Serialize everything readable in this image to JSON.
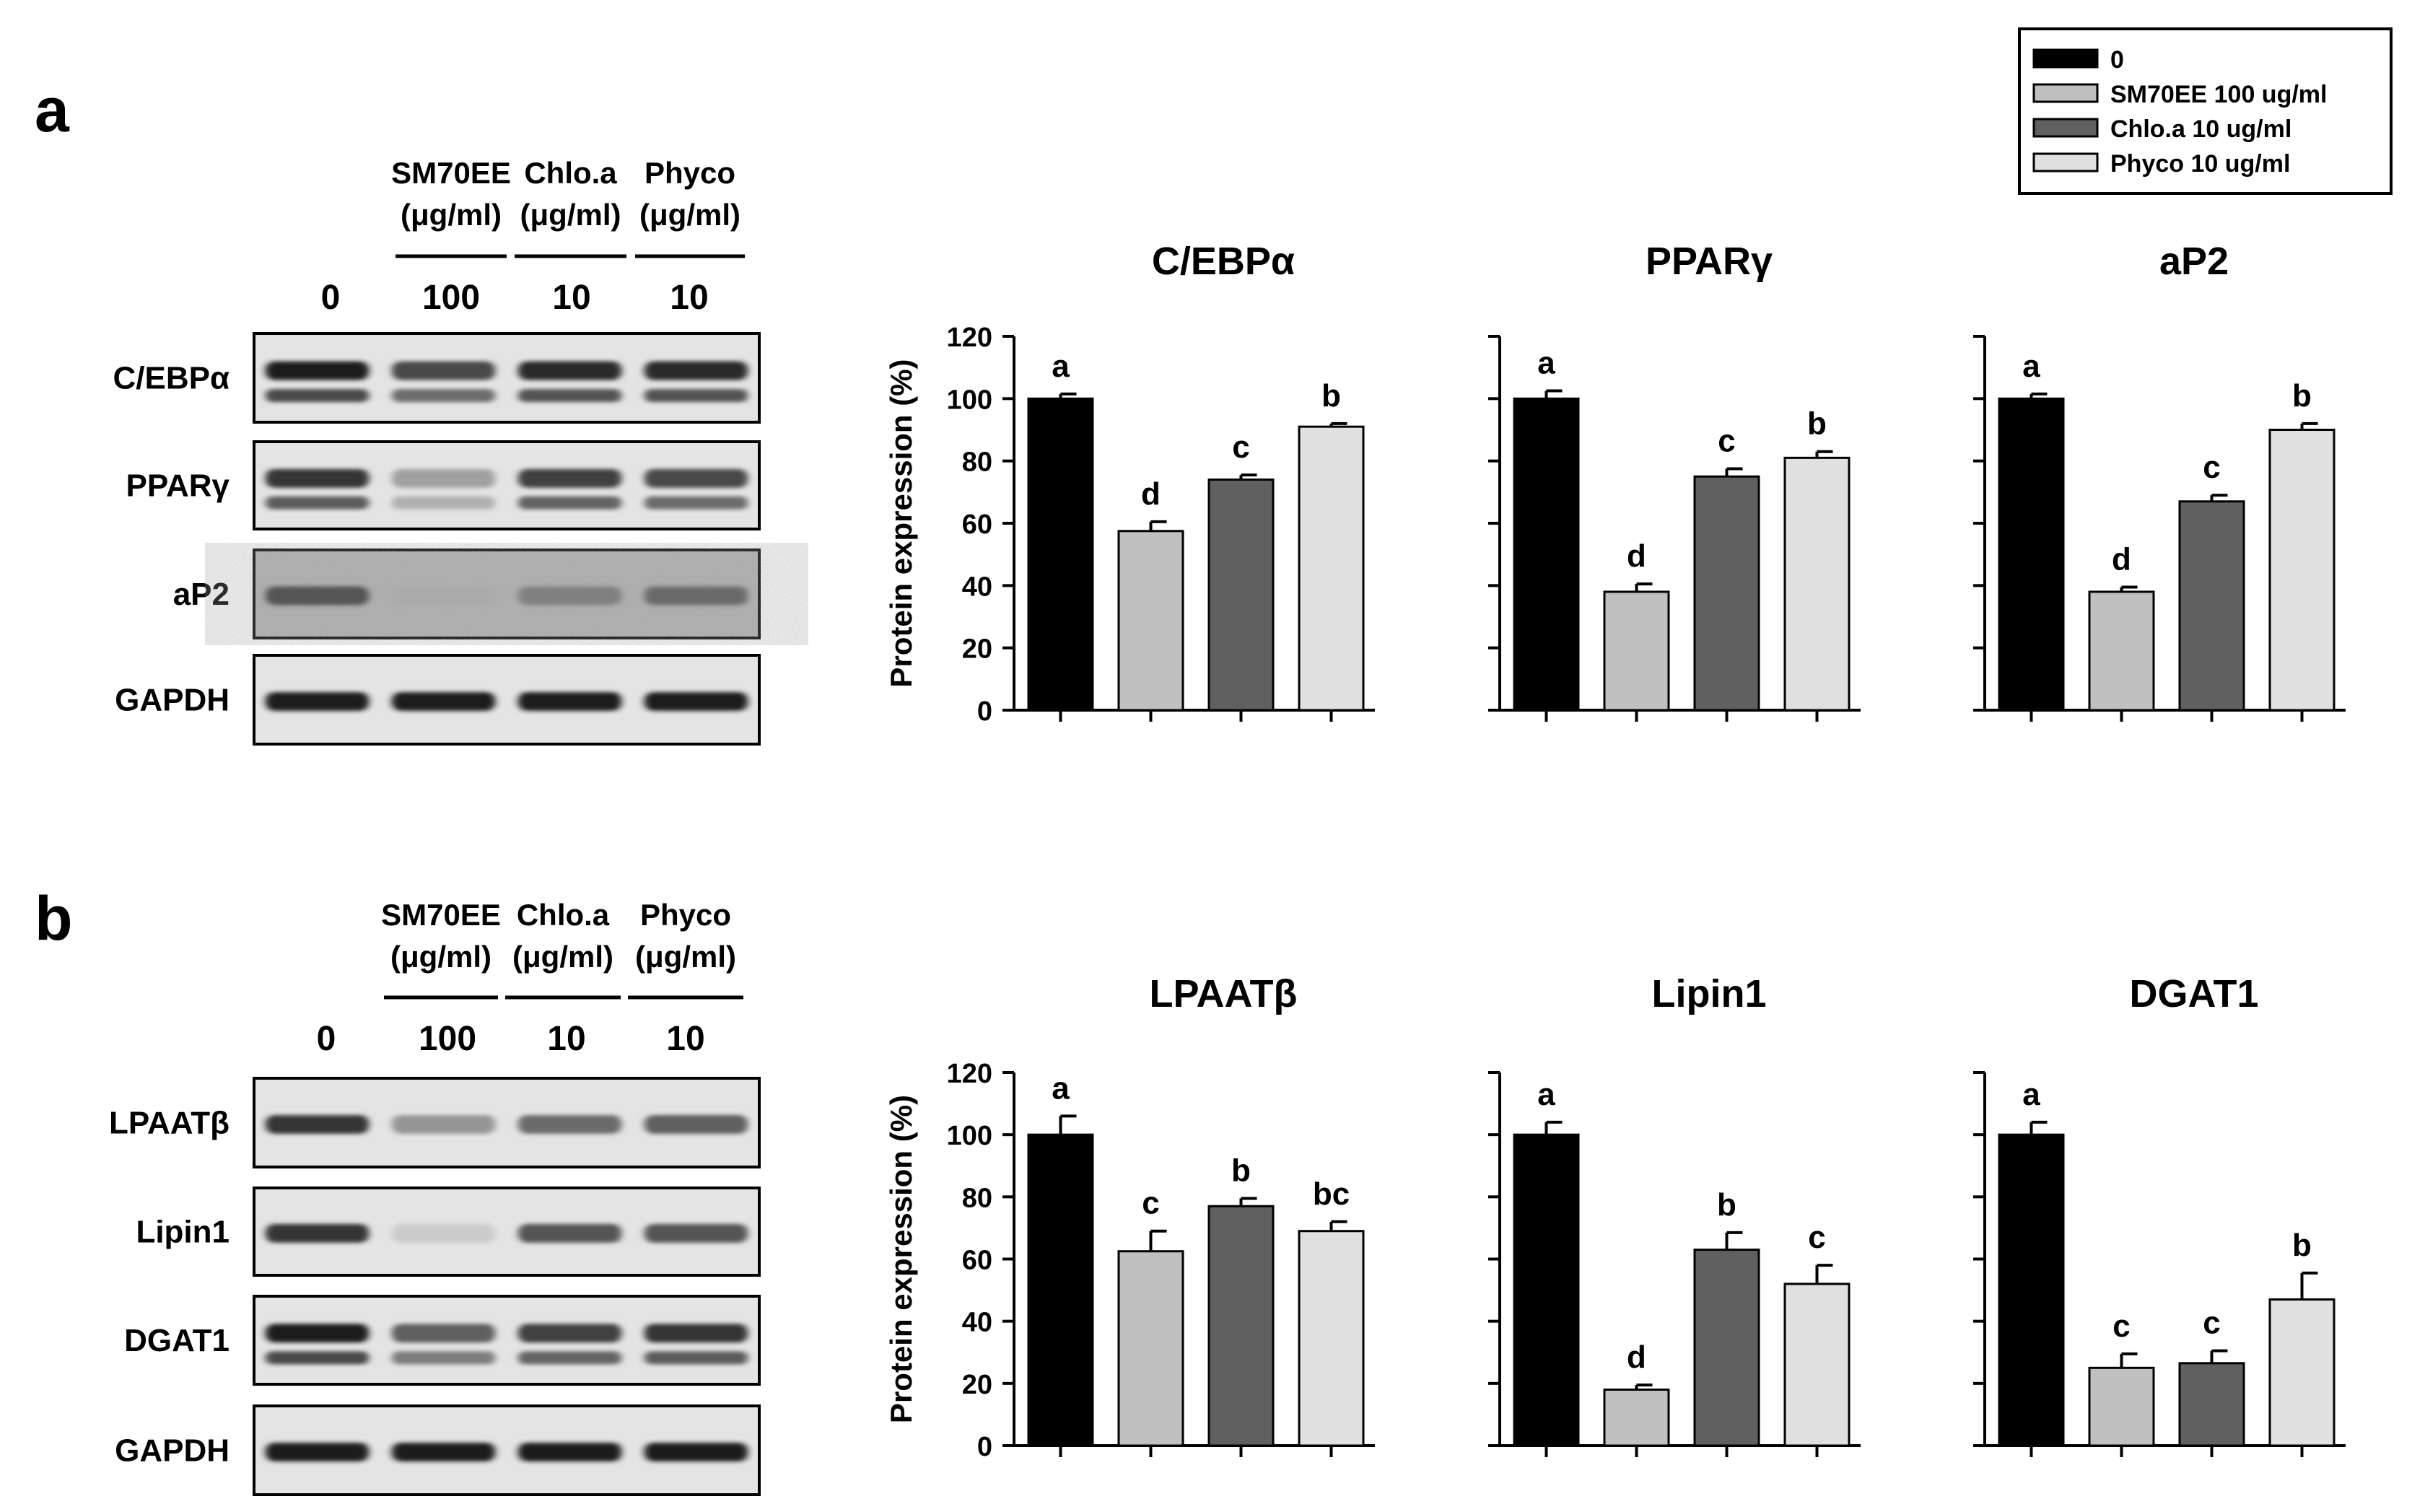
{
  "panels": [
    {
      "letter": "a",
      "blot": {
        "headers": [
          {
            "line1": "SM70EE",
            "line2": "(μg/ml)"
          },
          {
            "line1": "Chlo.a",
            "line2": "(μg/ml)"
          },
          {
            "line1": "Phyco",
            "line2": "(μg/ml)"
          }
        ],
        "lanes": [
          "0",
          "100",
          "10",
          "10"
        ],
        "rows": [
          {
            "label": "C/EBPα",
            "bands": [
              0.95,
              0.75,
              0.9,
              0.9
            ],
            "doublet": true
          },
          {
            "label": "PPARγ",
            "bands": [
              0.85,
              0.35,
              0.8,
              0.75
            ],
            "doublet": true
          },
          {
            "label": "aP2",
            "bands": [
              0.7,
              0.3,
              0.5,
              0.6
            ],
            "doublet": false,
            "noisy": true
          },
          {
            "label": "GAPDH",
            "bands": [
              0.95,
              0.95,
              0.95,
              0.95
            ],
            "doublet": false
          }
        ]
      }
    },
    {
      "letter": "b",
      "blot": {
        "headers": [
          {
            "line1": "SM70EE",
            "line2": "(μg/ml)"
          },
          {
            "line1": "Chlo.a",
            "line2": "(μg/ml)"
          },
          {
            "line1": "Phyco",
            "line2": "(μg/ml)"
          }
        ],
        "lanes": [
          "0",
          "100",
          "10",
          "10"
        ],
        "rows": [
          {
            "label": "LPAATβ",
            "bands": [
              0.85,
              0.4,
              0.6,
              0.65
            ],
            "doublet": false
          },
          {
            "label": "Lipin1",
            "bands": [
              0.85,
              0.15,
              0.7,
              0.7
            ],
            "doublet": false
          },
          {
            "label": "DGAT1",
            "bands": [
              0.95,
              0.65,
              0.8,
              0.85
            ],
            "doublet": true
          },
          {
            "label": "GAPDH",
            "bands": [
              0.95,
              0.95,
              0.95,
              0.95
            ],
            "doublet": false
          }
        ]
      }
    }
  ],
  "legend": [
    {
      "label": "0",
      "color": "#000000"
    },
    {
      "label": "SM70EE 100 ug/ml",
      "color": "#c0c0c0"
    },
    {
      "label": "Chlo.a 10 ug/ml",
      "color": "#606060"
    },
    {
      "label": "Phyco 10 ug/ml",
      "color": "#e0e0e0"
    }
  ],
  "chart_data": [
    {
      "type": "bar",
      "title": "C/EBPα",
      "ylabel": "Protein expression (%)",
      "ylim": [
        0,
        120
      ],
      "yticks": [
        0,
        20,
        40,
        60,
        80,
        100,
        120
      ],
      "series": [
        {
          "name": "0",
          "values": [
            100
          ]
        },
        {
          "name": "SM70EE 100 ug/ml",
          "values": [
            57.5
          ]
        },
        {
          "name": "Chlo.a 10 ug/ml",
          "values": [
            74
          ]
        },
        {
          "name": "Phyco 10 ug/ml",
          "values": [
            91
          ]
        }
      ],
      "errors": [
        1.5,
        3,
        1.5,
        1
      ],
      "letters": [
        "a",
        "d",
        "c",
        "b"
      ]
    },
    {
      "type": "bar",
      "title": "PPARγ",
      "ylim": [
        0,
        120
      ],
      "series": [
        {
          "name": "0",
          "values": [
            100
          ]
        },
        {
          "name": "SM70EE 100 ug/ml",
          "values": [
            38
          ]
        },
        {
          "name": "Chlo.a 10 ug/ml",
          "values": [
            75
          ]
        },
        {
          "name": "Phyco 10 ug/ml",
          "values": [
            81
          ]
        }
      ],
      "errors": [
        2.5,
        2.5,
        2.5,
        2
      ],
      "letters": [
        "a",
        "d",
        "c",
        "b"
      ]
    },
    {
      "type": "bar",
      "title": "aP2",
      "ylim": [
        0,
        120
      ],
      "series": [
        {
          "name": "0",
          "values": [
            100
          ]
        },
        {
          "name": "SM70EE 100 ug/ml",
          "values": [
            38
          ]
        },
        {
          "name": "Chlo.a 10 ug/ml",
          "values": [
            67
          ]
        },
        {
          "name": "Phyco 10 ug/ml",
          "values": [
            90
          ]
        }
      ],
      "errors": [
        1.5,
        1.5,
        2,
        2
      ],
      "letters": [
        "a",
        "d",
        "c",
        "b"
      ]
    },
    {
      "type": "bar",
      "title": "LPAATβ",
      "ylabel": "Protein expression (%)",
      "ylim": [
        0,
        120
      ],
      "yticks": [
        0,
        20,
        40,
        60,
        80,
        100,
        120
      ],
      "series": [
        {
          "name": "0",
          "values": [
            100
          ]
        },
        {
          "name": "SM70EE 100 ug/ml",
          "values": [
            62.5
          ]
        },
        {
          "name": "Chlo.a 10 ug/ml",
          "values": [
            77
          ]
        },
        {
          "name": "Phyco 10 ug/ml",
          "values": [
            69
          ]
        }
      ],
      "errors": [
        6,
        6.5,
        2.5,
        3
      ],
      "letters": [
        "a",
        "c",
        "b",
        "bc"
      ]
    },
    {
      "type": "bar",
      "title": "Lipin1",
      "ylim": [
        0,
        120
      ],
      "series": [
        {
          "name": "0",
          "values": [
            100
          ]
        },
        {
          "name": "SM70EE 100 ug/ml",
          "values": [
            18
          ]
        },
        {
          "name": "Chlo.a 10 ug/ml",
          "values": [
            63
          ]
        },
        {
          "name": "Phyco 10 ug/ml",
          "values": [
            52
          ]
        }
      ],
      "errors": [
        4,
        1.5,
        5.5,
        6
      ],
      "letters": [
        "a",
        "d",
        "b",
        "c"
      ]
    },
    {
      "type": "bar",
      "title": "DGAT1",
      "ylim": [
        0,
        120
      ],
      "series": [
        {
          "name": "0",
          "values": [
            100
          ]
        },
        {
          "name": "SM70EE 100 ug/ml",
          "values": [
            25
          ]
        },
        {
          "name": "Chlo.a 10 ug/ml",
          "values": [
            26.5
          ]
        },
        {
          "name": "Phyco 10 ug/ml",
          "values": [
            47
          ]
        }
      ],
      "errors": [
        4,
        4.5,
        4,
        8.5
      ],
      "letters": [
        "a",
        "c",
        "c",
        "b"
      ]
    }
  ]
}
